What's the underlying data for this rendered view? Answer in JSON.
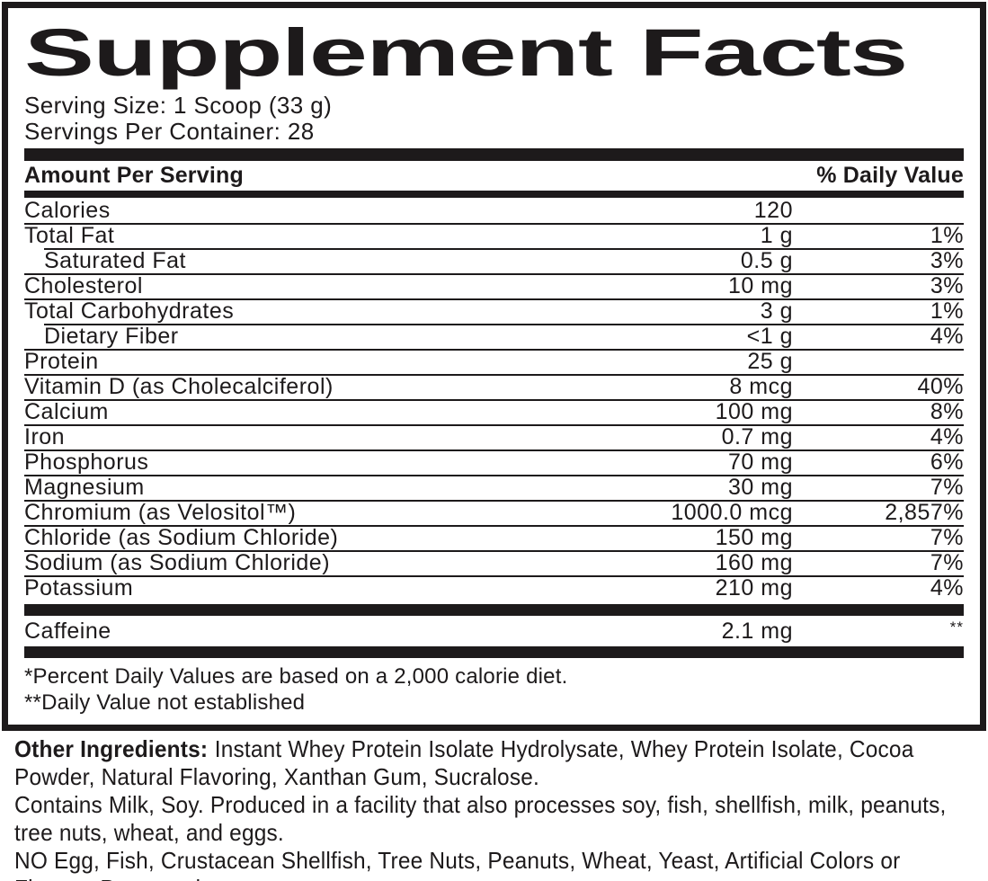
{
  "label": {
    "title": "Supplement Facts",
    "serving_size": "Serving Size: 1 Scoop (33 g)",
    "servings_per_container": "Servings Per Container: 28",
    "header": {
      "amount_per_serving": "Amount Per Serving",
      "daily_value": "% Daily Value"
    },
    "rows": [
      {
        "name": "Calories",
        "amount": "120",
        "dv": "",
        "indent": false
      },
      {
        "name": "Total Fat",
        "amount": "1 g",
        "dv": "1%",
        "indent": false
      },
      {
        "name": "Saturated Fat",
        "amount": "0.5 g",
        "dv": "3%",
        "indent": true
      },
      {
        "name": "Cholesterol",
        "amount": "10 mg",
        "dv": "3%",
        "indent": false
      },
      {
        "name": "Total Carbohydrates",
        "amount": "3 g",
        "dv": "1%",
        "indent": false
      },
      {
        "name": "Dietary Fiber",
        "amount": "<1 g",
        "dv": "4%",
        "indent": true
      },
      {
        "name": "Protein",
        "amount": "25 g",
        "dv": "",
        "indent": false
      },
      {
        "name": "Vitamin D (as Cholecalciferol)",
        "amount": "8 mcg",
        "dv": "40%",
        "indent": false
      },
      {
        "name": "Calcium",
        "amount": "100 mg",
        "dv": "8%",
        "indent": false
      },
      {
        "name": "Iron",
        "amount": "0.7 mg",
        "dv": "4%",
        "indent": false
      },
      {
        "name": "Phosphorus",
        "amount": "70 mg",
        "dv": "6%",
        "indent": false
      },
      {
        "name": "Magnesium",
        "amount": "30 mg",
        "dv": "7%",
        "indent": false
      },
      {
        "name": "Chromium (as Velositol™)",
        "amount": "1000.0 mcg",
        "dv": "2,857%",
        "indent": false
      },
      {
        "name": "Chloride (as Sodium Chloride)",
        "amount": "150 mg",
        "dv": "7%",
        "indent": false
      },
      {
        "name": "Sodium (as Sodium Chloride)",
        "amount": "160 mg",
        "dv": "7%",
        "indent": false
      },
      {
        "name": "Potassium",
        "amount": "210 mg",
        "dv": "4%",
        "indent": false
      }
    ],
    "caffeine_row": {
      "name": "Caffeine",
      "amount": "2.1 mg",
      "dv": "**"
    },
    "footnotes": [
      "*Percent Daily Values are based on a 2,000 calorie diet.",
      "**Daily Value not established"
    ]
  },
  "other_info": {
    "other_ingredients_label": "Other Ingredients:",
    "other_ingredients_text": "Instant Whey Protein Isolate Hydrolysate, Whey Protein Isolate, Cocoa Powder, Natural Flavoring, Xanthan Gum, Sucralose.",
    "allergen_text": "Contains Milk, Soy. Produced in a facility that also processes soy, fish, shellfish, milk, peanuts, tree nuts, wheat, and eggs.",
    "free_of_text": "NO Egg, Fish, Crustacean Shellfish, Tree Nuts, Peanuts, Wheat, Yeast, Artificial Colors or Flavors, Preservatives."
  },
  "colors": {
    "ink": "#1d1a1b",
    "background": "#ffffff"
  }
}
